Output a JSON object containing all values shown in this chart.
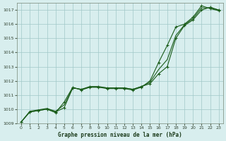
{
  "title": "Graphe pression niveau de la mer (hPa)",
  "background_color": "#d8eeee",
  "grid_color": "#a0c8c8",
  "line_color": "#1a5c1a",
  "xlim": [
    -0.5,
    23.5
  ],
  "ylim": [
    1009,
    1017.5
  ],
  "yticks": [
    1009,
    1010,
    1011,
    1012,
    1013,
    1014,
    1015,
    1016,
    1017
  ],
  "xticks": [
    0,
    1,
    2,
    3,
    4,
    5,
    6,
    7,
    8,
    9,
    10,
    11,
    12,
    13,
    14,
    15,
    16,
    17,
    18,
    19,
    20,
    21,
    22,
    23
  ],
  "series1": [
    1009.1,
    1009.8,
    1009.9,
    1010.0,
    1009.8,
    1010.1,
    1011.5,
    1011.4,
    1011.6,
    1011.6,
    1011.5,
    1011.5,
    1011.5,
    1011.4,
    1011.6,
    1011.8,
    1012.5,
    1013.0,
    1015.0,
    1015.9,
    1016.3,
    1017.0,
    1017.2,
    1017.0
  ],
  "series3": [
    1009.1,
    1009.8,
    1009.9,
    1010.0,
    1009.75,
    1010.5,
    1011.55,
    1011.35,
    1011.55,
    1011.55,
    1011.45,
    1011.45,
    1011.45,
    1011.35,
    1011.55,
    1012.0,
    1013.3,
    1014.5,
    1015.8,
    1016.0,
    1016.5,
    1017.3,
    1017.1,
    1016.95
  ],
  "series_smooth": [
    1009.1,
    1009.85,
    1009.95,
    1010.05,
    1009.85,
    1010.3,
    1011.5,
    1011.4,
    1011.55,
    1011.55,
    1011.5,
    1011.5,
    1011.5,
    1011.4,
    1011.6,
    1011.9,
    1012.8,
    1013.5,
    1015.2,
    1015.95,
    1016.4,
    1017.15,
    1017.15,
    1017.0
  ]
}
